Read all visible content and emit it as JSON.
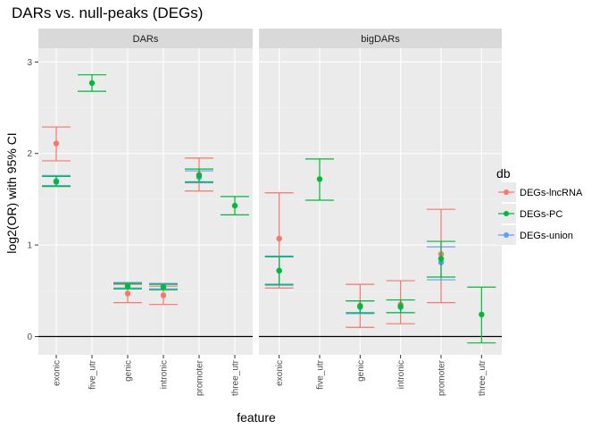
{
  "chart_data": {
    "type": "scatter",
    "title": "DARs vs. null-peaks (DEGs)",
    "xlabel": "feature",
    "ylabel": "log2(OR) with 95% CI",
    "ylim": [
      -0.2,
      3.15
    ],
    "yticks": [
      0,
      1,
      2,
      3
    ],
    "reference_line_y": 0,
    "categories": [
      "exonic",
      "five_utr",
      "genic",
      "intronic",
      "promoter",
      "three_utr"
    ],
    "legend": {
      "title": "db",
      "position": "right",
      "entries": [
        {
          "name": "DEGs-lncRNA",
          "color": "#F8766D"
        },
        {
          "name": "DEGs-PC",
          "color": "#00BA38"
        },
        {
          "name": "DEGs-union",
          "color": "#619CFF"
        }
      ]
    },
    "panels": [
      {
        "label": "DARs",
        "series": [
          {
            "name": "DEGs-lncRNA",
            "points": [
              {
                "x": "exonic",
                "y": 2.11,
                "lo": 1.92,
                "hi": 2.29
              },
              {
                "x": "genic",
                "y": 0.47,
                "lo": 0.37,
                "hi": 0.57
              },
              {
                "x": "intronic",
                "y": 0.45,
                "lo": 0.35,
                "hi": 0.55
              },
              {
                "x": "promoter",
                "y": 1.77,
                "lo": 1.59,
                "hi": 1.95
              }
            ]
          },
          {
            "name": "DEGs-union",
            "points": [
              {
                "x": "exonic",
                "y": 1.7,
                "lo": 1.65,
                "hi": 1.76
              },
              {
                "x": "genic",
                "y": 0.56,
                "lo": 0.53,
                "hi": 0.59
              },
              {
                "x": "intronic",
                "y": 0.55,
                "lo": 0.52,
                "hi": 0.58
              },
              {
                "x": "promoter",
                "y": 1.74,
                "lo": 1.68,
                "hi": 1.81
              }
            ]
          },
          {
            "name": "DEGs-PC",
            "points": [
              {
                "x": "exonic",
                "y": 1.69,
                "lo": 1.64,
                "hi": 1.75
              },
              {
                "x": "five_utr",
                "y": 2.77,
                "lo": 2.68,
                "hi": 2.86
              },
              {
                "x": "genic",
                "y": 0.55,
                "lo": 0.52,
                "hi": 0.58
              },
              {
                "x": "intronic",
                "y": 0.54,
                "lo": 0.51,
                "hi": 0.57
              },
              {
                "x": "promoter",
                "y": 1.76,
                "lo": 1.69,
                "hi": 1.83
              },
              {
                "x": "three_utr",
                "y": 1.43,
                "lo": 1.33,
                "hi": 1.53
              }
            ]
          }
        ]
      },
      {
        "label": "bigDARs",
        "series": [
          {
            "name": "DEGs-lncRNA",
            "points": [
              {
                "x": "exonic",
                "y": 1.07,
                "lo": 0.53,
                "hi": 1.57
              },
              {
                "x": "genic",
                "y": 0.34,
                "lo": 0.1,
                "hi": 0.57
              },
              {
                "x": "intronic",
                "y": 0.35,
                "lo": 0.14,
                "hi": 0.61
              },
              {
                "x": "promoter",
                "y": 0.9,
                "lo": 0.37,
                "hi": 1.39
              }
            ]
          },
          {
            "name": "DEGs-union",
            "points": [
              {
                "x": "exonic",
                "y": 0.72,
                "lo": 0.56,
                "hi": 0.88
              },
              {
                "x": "genic",
                "y": 0.32,
                "lo": 0.25,
                "hi": 0.39
              },
              {
                "x": "intronic",
                "y": 0.32,
                "lo": 0.26,
                "hi": 0.4
              },
              {
                "x": "promoter",
                "y": 0.81,
                "lo": 0.62,
                "hi": 0.98
              }
            ]
          },
          {
            "name": "DEGs-PC",
            "points": [
              {
                "x": "exonic",
                "y": 0.72,
                "lo": 0.57,
                "hi": 0.87
              },
              {
                "x": "five_utr",
                "y": 1.72,
                "lo": 1.49,
                "hi": 1.94
              },
              {
                "x": "genic",
                "y": 0.33,
                "lo": 0.26,
                "hi": 0.39
              },
              {
                "x": "intronic",
                "y": 0.33,
                "lo": 0.26,
                "hi": 0.4
              },
              {
                "x": "promoter",
                "y": 0.85,
                "lo": 0.65,
                "hi": 1.04
              },
              {
                "x": "three_utr",
                "y": 0.24,
                "lo": -0.07,
                "hi": 0.54
              }
            ]
          }
        ]
      }
    ]
  }
}
